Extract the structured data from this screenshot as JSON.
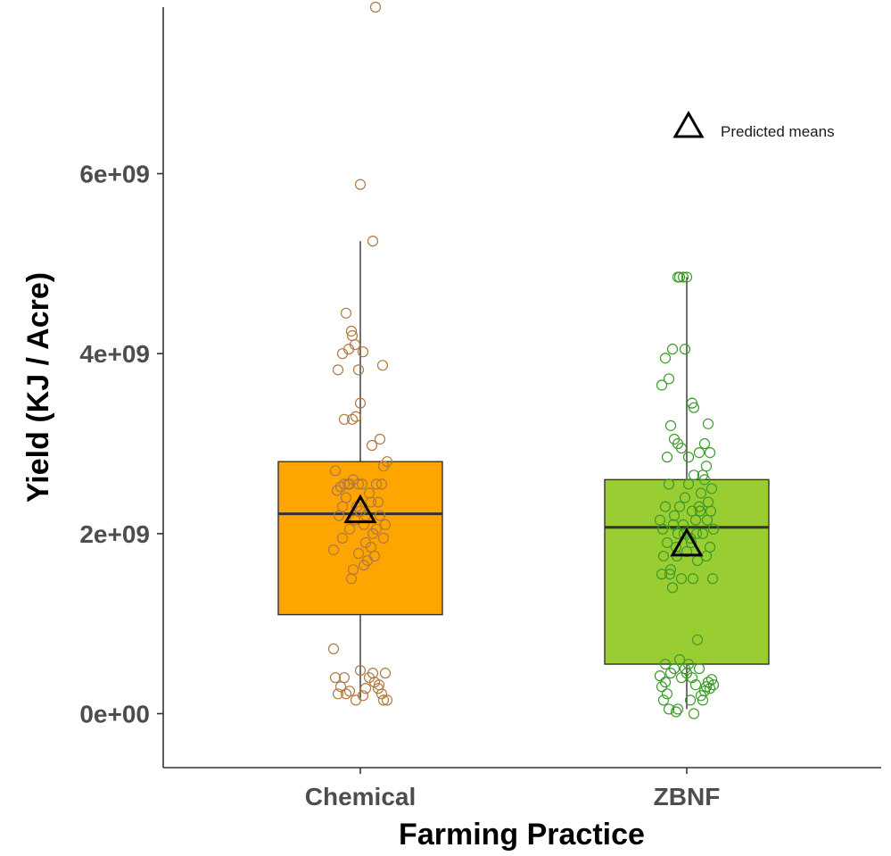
{
  "chart_data": {
    "type": "box",
    "xlabel": "Farming Practice",
    "ylabel": "Yield (KJ / Acre)",
    "categories": [
      "Chemical",
      "ZBNF"
    ],
    "ylim": [
      -600000000.0,
      7850000000.0
    ],
    "yticks": [
      0,
      2000000000.0,
      4000000000.0,
      6000000000.0
    ],
    "ytick_labels": [
      "0e+00",
      "2e+09",
      "4e+09",
      "6e+09"
    ],
    "grid": false,
    "legend": {
      "label": "Predicted means",
      "symbol": "triangle-open",
      "placement": "top-right"
    },
    "colors": {
      "Chemical_fill": "#FFA500",
      "Chemical_points": "#B07840",
      "ZBNF_fill": "#9ACD32",
      "ZBNF_points": "#3C9A2A",
      "box_line": "#333333",
      "axis": "#333333"
    },
    "series": [
      {
        "name": "Chemical",
        "box": {
          "whisker_low": 150000000.0,
          "q1": 1100000000.0,
          "median": 2220000000.0,
          "q3": 2800000000.0,
          "whisker_high": 5250000000.0
        },
        "predicted_mean": 2270000000.0,
        "points": [
          [
            -0.3,
            720000000.0
          ],
          [
            -0.28,
            400000000.0
          ],
          [
            -0.25,
            220000000.0
          ],
          [
            -0.22,
            300000000.0
          ],
          [
            -0.18,
            400000000.0
          ],
          [
            -0.12,
            250000000.0
          ],
          [
            -0.05,
            150000000.0
          ],
          [
            0.0,
            480000000.0
          ],
          [
            0.03,
            200000000.0
          ],
          [
            0.06,
            280000000.0
          ],
          [
            0.1,
            400000000.0
          ],
          [
            0.14,
            450000000.0
          ],
          [
            0.16,
            350000000.0
          ],
          [
            0.2,
            280000000.0
          ],
          [
            0.24,
            220000000.0
          ],
          [
            0.26,
            150000000.0
          ],
          [
            0.28,
            450000000.0
          ],
          [
            0.3,
            150000000.0
          ],
          [
            0.21,
            320000000.0
          ],
          [
            -0.16,
            220000000.0
          ],
          [
            -0.3,
            1820000000.0
          ],
          [
            -0.28,
            2700000000.0
          ],
          [
            -0.26,
            2480000000.0
          ],
          [
            -0.24,
            2200000000.0
          ],
          [
            -0.22,
            2520000000.0
          ],
          [
            -0.2,
            1950000000.0
          ],
          [
            -0.18,
            2550000000.0
          ],
          [
            -0.16,
            2400000000.0
          ],
          [
            -0.14,
            2550000000.0
          ],
          [
            -0.12,
            2050000000.0
          ],
          [
            -0.1,
            1500000000.0
          ],
          [
            -0.08,
            1600000000.0
          ],
          [
            -0.06,
            2150000000.0
          ],
          [
            -0.04,
            2300000000.0
          ],
          [
            -0.02,
            2550000000.0
          ],
          [
            0.0,
            2250000000.0
          ],
          [
            0.02,
            2550000000.0
          ],
          [
            0.04,
            1650000000.0
          ],
          [
            0.06,
            2200000000.0
          ],
          [
            0.08,
            1700000000.0
          ],
          [
            0.1,
            2450000000.0
          ],
          [
            0.12,
            2350000000.0
          ],
          [
            0.14,
            2000000000.0
          ],
          [
            0.16,
            1750000000.0
          ],
          [
            0.18,
            2550000000.0
          ],
          [
            0.2,
            2350000000.0
          ],
          [
            0.22,
            2200000000.0
          ],
          [
            0.24,
            2550000000.0
          ],
          [
            0.26,
            2750000000.0
          ],
          [
            0.28,
            2100000000.0
          ],
          [
            0.3,
            2800000000.0
          ],
          [
            -0.02,
            1780000000.0
          ],
          [
            0.06,
            1900000000.0
          ],
          [
            0.12,
            1850000000.0
          ],
          [
            -0.12,
            2550000000.0
          ],
          [
            -0.2,
            2300000000.0
          ],
          [
            0.18,
            2050000000.0
          ],
          [
            0.26,
            1950000000.0
          ],
          [
            -0.08,
            2600000000.0
          ],
          [
            0.04,
            2100000000.0
          ],
          [
            -0.25,
            3820000000.0
          ],
          [
            -0.18,
            3270000000.0
          ],
          [
            -0.1,
            4250000000.0
          ],
          [
            -0.06,
            4100000000.0
          ],
          [
            -0.02,
            3820000000.0
          ],
          [
            0.0,
            3450000000.0
          ],
          [
            0.03,
            4020000000.0
          ],
          [
            -0.09,
            4200000000.0
          ],
          [
            -0.13,
            4050000000.0
          ],
          [
            -0.16,
            4450000000.0
          ],
          [
            -0.05,
            3300000000.0
          ],
          [
            0.25,
            3870000000.0
          ],
          [
            0.22,
            3050000000.0
          ],
          [
            0.13,
            2980000000.0
          ],
          [
            -0.09,
            3270000000.0
          ],
          [
            -0.2,
            4000000000.0
          ],
          [
            0.14,
            5250000000.0
          ],
          [
            0.0,
            5880000000.0
          ],
          [
            0.17,
            7850000000.0
          ]
        ]
      },
      {
        "name": "ZBNF",
        "box": {
          "whisker_low": 50000000.0,
          "q1": 550000000.0,
          "median": 2070000000.0,
          "q3": 2600000000.0,
          "whisker_high": 4850000000.0
        },
        "predicted_mean": 1900000000.0,
        "points": [
          [
            -0.3,
            420000000.0
          ],
          [
            -0.28,
            300000000.0
          ],
          [
            -0.26,
            150000000.0
          ],
          [
            -0.24,
            350000000.0
          ],
          [
            -0.22,
            220000000.0
          ],
          [
            -0.18,
            450000000.0
          ],
          [
            -0.14,
            500000000.0
          ],
          [
            -0.1,
            50000000.0
          ],
          [
            -0.06,
            400000000.0
          ],
          [
            -0.02,
            500000000.0
          ],
          [
            0.02,
            550000000.0
          ],
          [
            0.04,
            150000000.0
          ],
          [
            0.06,
            400000000.0
          ],
          [
            0.1,
            320000000.0
          ],
          [
            0.14,
            500000000.0
          ],
          [
            0.16,
            200000000.0
          ],
          [
            0.18,
            150000000.0
          ],
          [
            0.2,
            250000000.0
          ],
          [
            0.22,
            300000000.0
          ],
          [
            0.24,
            350000000.0
          ],
          [
            -0.12,
            20000000.0
          ],
          [
            0.08,
            0.0
          ],
          [
            -0.24,
            550000000.0
          ],
          [
            -0.08,
            600000000.0
          ],
          [
            0.0,
            450000000.0
          ],
          [
            0.26,
            280000000.0
          ],
          [
            0.28,
            380000000.0
          ],
          [
            -0.2,
            50000000.0
          ],
          [
            0.12,
            820000000.0
          ],
          [
            0.3,
            320000000.0
          ],
          [
            -0.3,
            2150000000.0
          ],
          [
            -0.28,
            1550000000.0
          ],
          [
            -0.26,
            1750000000.0
          ],
          [
            -0.24,
            2300000000.0
          ],
          [
            -0.22,
            1900000000.0
          ],
          [
            -0.2,
            2550000000.0
          ],
          [
            -0.18,
            1600000000.0
          ],
          [
            -0.16,
            1400000000.0
          ],
          [
            -0.14,
            2200000000.0
          ],
          [
            -0.12,
            1850000000.0
          ],
          [
            -0.1,
            2000000000.0
          ],
          [
            -0.08,
            2300000000.0
          ],
          [
            -0.06,
            1500000000.0
          ],
          [
            -0.04,
            2100000000.0
          ],
          [
            -0.02,
            2400000000.0
          ],
          [
            0.0,
            1800000000.0
          ],
          [
            0.02,
            2550000000.0
          ],
          [
            0.04,
            1950000000.0
          ],
          [
            0.06,
            2250000000.0
          ],
          [
            0.08,
            2650000000.0
          ],
          [
            0.1,
            2150000000.0
          ],
          [
            0.12,
            1700000000.0
          ],
          [
            0.14,
            2300000000.0
          ],
          [
            0.16,
            2450000000.0
          ],
          [
            0.18,
            2000000000.0
          ],
          [
            0.2,
            2600000000.0
          ],
          [
            0.22,
            1750000000.0
          ],
          [
            0.24,
            2350000000.0
          ],
          [
            0.26,
            1850000000.0
          ],
          [
            0.28,
            2500000000.0
          ],
          [
            0.3,
            2050000000.0
          ],
          [
            -0.27,
            2050000000.0
          ],
          [
            -0.19,
            1550000000.0
          ],
          [
            -0.11,
            1750000000.0
          ],
          [
            0.07,
            1500000000.0
          ],
          [
            0.15,
            2250000000.0
          ],
          [
            0.23,
            2150000000.0
          ],
          [
            0.29,
            1500000000.0
          ],
          [
            -0.03,
            2000000000.0
          ],
          [
            0.05,
            1900000000.0
          ],
          [
            -0.15,
            2100000000.0
          ],
          [
            0.11,
            2000000000.0
          ],
          [
            0.27,
            2250000000.0
          ],
          [
            -0.28,
            3650000000.0
          ],
          [
            -0.24,
            3950000000.0
          ],
          [
            -0.2,
            3720000000.0
          ],
          [
            -0.14,
            3050000000.0
          ],
          [
            -0.1,
            3000000000.0
          ],
          [
            -0.06,
            2950000000.0
          ],
          [
            -0.02,
            4050000000.0
          ],
          [
            0.02,
            2850000000.0
          ],
          [
            0.06,
            3450000000.0
          ],
          [
            0.08,
            3400000000.0
          ],
          [
            0.14,
            2900000000.0
          ],
          [
            0.2,
            3000000000.0
          ],
          [
            0.24,
            3220000000.0
          ],
          [
            0.26,
            2900000000.0
          ],
          [
            0.22,
            2750000000.0
          ],
          [
            -0.16,
            4050000000.0
          ],
          [
            -0.18,
            3200000000.0
          ],
          [
            -0.22,
            2850000000.0
          ],
          [
            0.18,
            2650000000.0
          ],
          [
            -0.08,
            4850000000.0
          ],
          [
            -0.04,
            4850000000.0
          ],
          [
            0.0,
            4850000000.0
          ],
          [
            -0.1,
            4850000000.0
          ]
        ]
      }
    ]
  }
}
